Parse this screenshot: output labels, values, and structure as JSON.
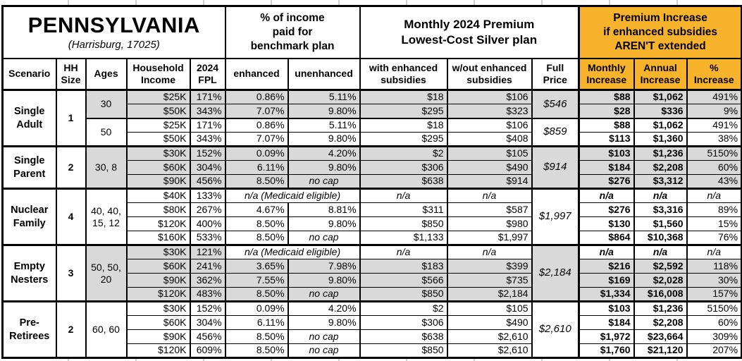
{
  "colors": {
    "accent_orange": "#F7B32B",
    "shade_gray": "#D9D9D9",
    "border": "#000000"
  },
  "header": {
    "state": "PENNSYLVANIA",
    "location": "(Harrisburg, 17025)",
    "income_pct_title": "% of income\npaid for\nbenchmark plan",
    "premium_title": "Monthly 2024 Premium\nLowest-Cost Silver plan",
    "increase_title": "Premium Increase\nif enhanced subsidies\nAREN'T extended",
    "columns": [
      "Scenario",
      "HH\nSize",
      "Ages",
      "Household\nIncome",
      "2024\nFPL",
      "enhanced",
      "unenhanced",
      "with enhanced\nsubsidies",
      "w/out enhanced\nsubsidies",
      "Full\nPrice",
      "Monthly\nIncrease",
      "Annual\nIncrease",
      "%\nIncrease"
    ]
  },
  "labels": {
    "na": "n/a",
    "no_cap": "no cap",
    "medicaid_note": "n/a (Medicaid eligible)"
  },
  "groups": [
    {
      "scenario": "Single\nAdult",
      "hh_size": "1",
      "subgroups": [
        {
          "ages": "30",
          "shaded": true,
          "full_price": "$546",
          "rows": [
            {
              "income": "$25K",
              "fpl": "171%",
              "enhanced": "0.86%",
              "unenhanced": "5.11%",
              "with_sub": "$18",
              "wout_sub": "$106",
              "monthly": "$88",
              "annual": "$1,062",
              "pct": "491%"
            },
            {
              "income": "$50K",
              "fpl": "343%",
              "enhanced": "7.07%",
              "unenhanced": "9.80%",
              "with_sub": "$295",
              "wout_sub": "$323",
              "monthly": "$28",
              "annual": "$336",
              "pct": "9%"
            }
          ]
        },
        {
          "ages": "50",
          "shaded": false,
          "full_price": "$859",
          "rows": [
            {
              "income": "$25K",
              "fpl": "171%",
              "enhanced": "0.86%",
              "unenhanced": "5.11%",
              "with_sub": "$18",
              "wout_sub": "$106",
              "monthly": "$88",
              "annual": "$1,062",
              "pct": "491%"
            },
            {
              "income": "$50K",
              "fpl": "343%",
              "enhanced": "7.07%",
              "unenhanced": "9.80%",
              "with_sub": "$295",
              "wout_sub": "$408",
              "monthly": "$113",
              "annual": "$1,360",
              "pct": "38%"
            }
          ]
        }
      ]
    },
    {
      "scenario": "Single\nParent",
      "hh_size": "2",
      "subgroups": [
        {
          "ages": "30, 8",
          "shaded": true,
          "full_price": "$914",
          "rows": [
            {
              "income": "$30K",
              "fpl": "152%",
              "enhanced": "0.09%",
              "unenhanced": "4.20%",
              "with_sub": "$2",
              "wout_sub": "$105",
              "monthly": "$103",
              "annual": "$1,236",
              "pct": "5150%"
            },
            {
              "income": "$60K",
              "fpl": "304%",
              "enhanced": "6.11%",
              "unenhanced": "9.80%",
              "with_sub": "$306",
              "wout_sub": "$490",
              "monthly": "$184",
              "annual": "$2,208",
              "pct": "60%"
            },
            {
              "income": "$90K",
              "fpl": "456%",
              "enhanced": "8.50%",
              "unenhanced": "no cap",
              "with_sub": "$638",
              "wout_sub": "$914",
              "monthly": "$276",
              "annual": "$3,312",
              "pct": "43%"
            }
          ]
        }
      ]
    },
    {
      "scenario": "Nuclear\nFamily",
      "hh_size": "4",
      "subgroups": [
        {
          "ages": "40, 40,\n15, 12",
          "shaded": false,
          "full_price": "$1,997",
          "rows": [
            {
              "income": "$40K",
              "fpl": "133%",
              "medicaid": true
            },
            {
              "income": "$80K",
              "fpl": "267%",
              "enhanced": "4.67%",
              "unenhanced": "8.81%",
              "with_sub": "$311",
              "wout_sub": "$587",
              "monthly": "$276",
              "annual": "$3,316",
              "pct": "89%"
            },
            {
              "income": "$120K",
              "fpl": "400%",
              "enhanced": "8.50%",
              "unenhanced": "9.80%",
              "with_sub": "$850",
              "wout_sub": "$980",
              "monthly": "$130",
              "annual": "$1,560",
              "pct": "15%"
            },
            {
              "income": "$160K",
              "fpl": "533%",
              "enhanced": "8.50%",
              "unenhanced": "no cap",
              "with_sub": "$1,133",
              "wout_sub": "$1,997",
              "monthly": "$864",
              "annual": "$10,368",
              "pct": "76%"
            }
          ]
        }
      ]
    },
    {
      "scenario": "Empty\nNesters",
      "hh_size": "3",
      "subgroups": [
        {
          "ages": "50, 50,\n20",
          "shaded": true,
          "full_price": "$2,184",
          "rows": [
            {
              "income": "$30K",
              "fpl": "121%",
              "medicaid": true
            },
            {
              "income": "$60K",
              "fpl": "241%",
              "enhanced": "3.65%",
              "unenhanced": "7.98%",
              "with_sub": "$183",
              "wout_sub": "$399",
              "monthly": "$216",
              "annual": "$2,592",
              "pct": "118%"
            },
            {
              "income": "$90K",
              "fpl": "362%",
              "enhanced": "7.55%",
              "unenhanced": "9.80%",
              "with_sub": "$566",
              "wout_sub": "$735",
              "monthly": "$169",
              "annual": "$2,028",
              "pct": "30%"
            },
            {
              "income": "$120K",
              "fpl": "483%",
              "enhanced": "8.50%",
              "unenhanced": "no cap",
              "with_sub": "$850",
              "wout_sub": "$2,184",
              "monthly": "$1,334",
              "annual": "$16,008",
              "pct": "157%"
            }
          ]
        }
      ]
    },
    {
      "scenario": "Pre-\nRetirees",
      "hh_size": "2",
      "subgroups": [
        {
          "ages": "60, 60",
          "shaded": false,
          "full_price": "$2,610",
          "rows": [
            {
              "income": "$30K",
              "fpl": "152%",
              "enhanced": "0.09%",
              "unenhanced": "4.20%",
              "with_sub": "$2",
              "wout_sub": "$105",
              "monthly": "$103",
              "annual": "$1,236",
              "pct": "5150%"
            },
            {
              "income": "$60K",
              "fpl": "304%",
              "enhanced": "6.11%",
              "unenhanced": "9.80%",
              "with_sub": "$306",
              "wout_sub": "$490",
              "monthly": "$184",
              "annual": "$2,208",
              "pct": "60%"
            },
            {
              "income": "$90K",
              "fpl": "456%",
              "enhanced": "8.50%",
              "unenhanced": "no cap",
              "with_sub": "$638",
              "wout_sub": "$2,610",
              "monthly": "$1,972",
              "annual": "$23,664",
              "pct": "309%"
            },
            {
              "income": "$120K",
              "fpl": "609%",
              "enhanced": "8.50%",
              "unenhanced": "no cap",
              "with_sub": "$850",
              "wout_sub": "$2,610",
              "monthly": "$1,760",
              "annual": "$21,120",
              "pct": "207%"
            }
          ]
        }
      ]
    }
  ],
  "chart_data": {
    "type": "table",
    "title": "PENNSYLVANIA (Harrisburg, 17025)",
    "column_groups": [
      "% of income paid for benchmark plan",
      "Monthly 2024 Premium Lowest-Cost Silver plan",
      "Premium Increase if enhanced subsidies AREN'T extended"
    ],
    "columns": [
      "Scenario",
      "HH Size",
      "Ages",
      "Household Income",
      "2024 FPL",
      "enhanced",
      "unenhanced",
      "with enhanced subsidies",
      "w/out enhanced subsidies",
      "Full Price",
      "Monthly Increase",
      "Annual Increase",
      "% Increase"
    ],
    "rows": [
      [
        "Single Adult",
        "1",
        "30",
        "$25K",
        "171%",
        "0.86%",
        "5.11%",
        "$18",
        "$106",
        "$546",
        "$88",
        "$1,062",
        "491%"
      ],
      [
        "Single Adult",
        "1",
        "30",
        "$50K",
        "343%",
        "7.07%",
        "9.80%",
        "$295",
        "$323",
        "$546",
        "$28",
        "$336",
        "9%"
      ],
      [
        "Single Adult",
        "1",
        "50",
        "$25K",
        "171%",
        "0.86%",
        "5.11%",
        "$18",
        "$106",
        "$859",
        "$88",
        "$1,062",
        "491%"
      ],
      [
        "Single Adult",
        "1",
        "50",
        "$50K",
        "343%",
        "7.07%",
        "9.80%",
        "$295",
        "$408",
        "$859",
        "$113",
        "$1,360",
        "38%"
      ],
      [
        "Single Parent",
        "2",
        "30, 8",
        "$30K",
        "152%",
        "0.09%",
        "4.20%",
        "$2",
        "$105",
        "$914",
        "$103",
        "$1,236",
        "5150%"
      ],
      [
        "Single Parent",
        "2",
        "30, 8",
        "$60K",
        "304%",
        "6.11%",
        "9.80%",
        "$306",
        "$490",
        "$914",
        "$184",
        "$2,208",
        "60%"
      ],
      [
        "Single Parent",
        "2",
        "30, 8",
        "$90K",
        "456%",
        "8.50%",
        "no cap",
        "$638",
        "$914",
        "$914",
        "$276",
        "$3,312",
        "43%"
      ],
      [
        "Nuclear Family",
        "4",
        "40, 40, 15, 12",
        "$40K",
        "133%",
        "n/a (Medicaid eligible)",
        "n/a (Medicaid eligible)",
        "n/a",
        "n/a",
        "$1,997",
        "n/a",
        "n/a",
        "n/a"
      ],
      [
        "Nuclear Family",
        "4",
        "40, 40, 15, 12",
        "$80K",
        "267%",
        "4.67%",
        "8.81%",
        "$311",
        "$587",
        "$1,997",
        "$276",
        "$3,316",
        "89%"
      ],
      [
        "Nuclear Family",
        "4",
        "40, 40, 15, 12",
        "$120K",
        "400%",
        "8.50%",
        "9.80%",
        "$850",
        "$980",
        "$1,997",
        "$130",
        "$1,560",
        "15%"
      ],
      [
        "Nuclear Family",
        "4",
        "40, 40, 15, 12",
        "$160K",
        "533%",
        "8.50%",
        "no cap",
        "$1,133",
        "$1,997",
        "$1,997",
        "$864",
        "$10,368",
        "76%"
      ],
      [
        "Empty Nesters",
        "3",
        "50, 50, 20",
        "$30K",
        "121%",
        "n/a (Medicaid eligible)",
        "n/a (Medicaid eligible)",
        "n/a",
        "n/a",
        "$2,184",
        "n/a",
        "n/a",
        "n/a"
      ],
      [
        "Empty Nesters",
        "3",
        "50, 50, 20",
        "$60K",
        "241%",
        "3.65%",
        "7.98%",
        "$183",
        "$399",
        "$2,184",
        "$216",
        "$2,592",
        "118%"
      ],
      [
        "Empty Nesters",
        "3",
        "50, 50, 20",
        "$90K",
        "362%",
        "7.55%",
        "9.80%",
        "$566",
        "$735",
        "$2,184",
        "$169",
        "$2,028",
        "30%"
      ],
      [
        "Empty Nesters",
        "3",
        "50, 50, 20",
        "$120K",
        "483%",
        "8.50%",
        "no cap",
        "$850",
        "$2,184",
        "$2,184",
        "$1,334",
        "$16,008",
        "157%"
      ],
      [
        "Pre-Retirees",
        "2",
        "60, 60",
        "$30K",
        "152%",
        "0.09%",
        "4.20%",
        "$2",
        "$105",
        "$2,610",
        "$103",
        "$1,236",
        "5150%"
      ],
      [
        "Pre-Retirees",
        "2",
        "60, 60",
        "$60K",
        "304%",
        "6.11%",
        "9.80%",
        "$306",
        "$490",
        "$2,610",
        "$184",
        "$2,208",
        "60%"
      ],
      [
        "Pre-Retirees",
        "2",
        "60, 60",
        "$90K",
        "456%",
        "8.50%",
        "no cap",
        "$638",
        "$2,610",
        "$2,610",
        "$1,972",
        "$23,664",
        "309%"
      ],
      [
        "Pre-Retirees",
        "2",
        "60, 60",
        "$120K",
        "609%",
        "8.50%",
        "no cap",
        "$850",
        "$2,610",
        "$2,610",
        "$1,760",
        "$21,120",
        "207%"
      ]
    ]
  }
}
